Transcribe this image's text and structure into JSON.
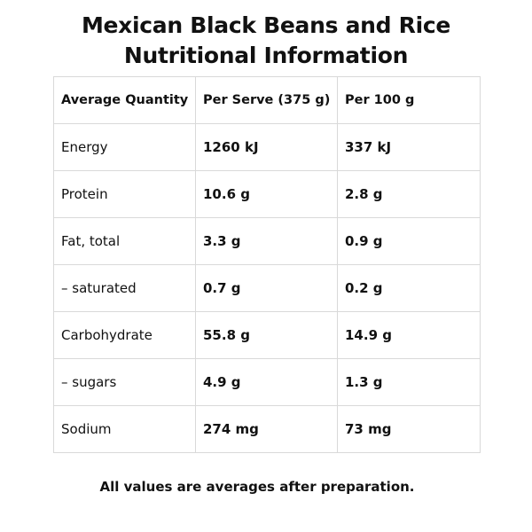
{
  "title": {
    "line1": "Mexican Black Beans and Rice",
    "line2": "Nutritional Information"
  },
  "table": {
    "headers": [
      "Average Quantity",
      "Per Serve (375 g)",
      "Per 100 g"
    ],
    "rows": [
      [
        "Energy",
        "1260 kJ",
        "337 kJ"
      ],
      [
        "Protein",
        "10.6 g",
        "2.8 g"
      ],
      [
        "Fat, total",
        "3.3 g",
        "0.9 g"
      ],
      [
        "– saturated",
        "0.7 g",
        "0.2 g"
      ],
      [
        "Carbohydrate",
        "55.8 g",
        "14.9 g"
      ],
      [
        "– sugars",
        "4.9 g",
        "1.3 g"
      ],
      [
        "Sodium",
        "274 mg",
        "73 mg"
      ]
    ]
  },
  "footnote": "All values are averages after preparation."
}
